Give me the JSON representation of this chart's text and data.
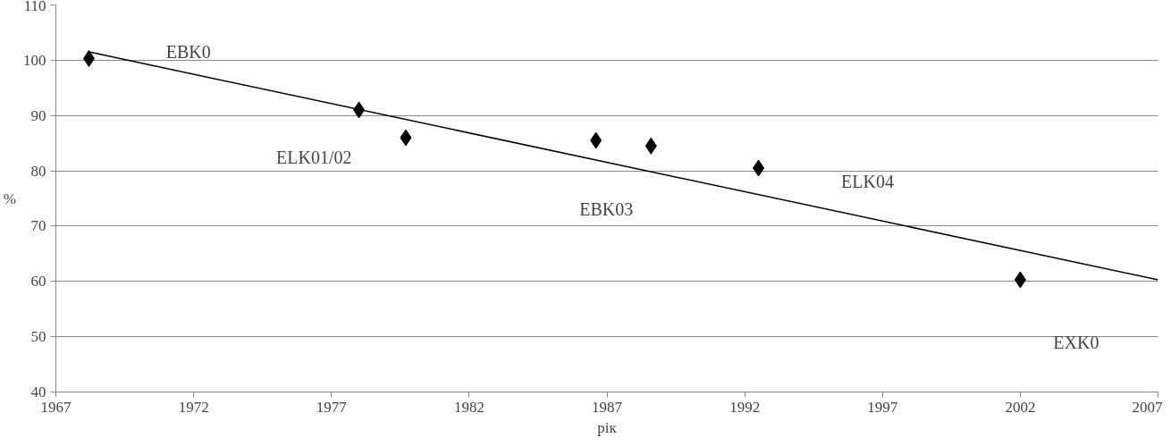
{
  "chart_data": {
    "type": "scatter",
    "xlabel": "рік",
    "ylabel": "%",
    "xlim": [
      1967,
      2007
    ],
    "xticks": [
      1967,
      1972,
      1977,
      1982,
      1987,
      1992,
      1997,
      2002,
      2007
    ],
    "ylim": [
      40,
      110
    ],
    "yticks": [
      40,
      50,
      60,
      70,
      80,
      90,
      100,
      110
    ],
    "grid": "y",
    "series": [
      {
        "marker": "diamond",
        "color": "#000000",
        "x": [
          1968.2,
          1978,
          1979.7,
          1986.6,
          1988.6,
          1992.5,
          2002
        ],
        "values": [
          100.3,
          91,
          86,
          85.5,
          84.5,
          80.5,
          60.3
        ]
      },
      {
        "type": "line",
        "color": "#000000",
        "x": [
          1968.2,
          2007
        ],
        "values": [
          101.5,
          60.3
        ]
      }
    ],
    "annotations": [
      "EBK0",
      "ELK01/02",
      "EBK03",
      "ELK04",
      "EXK0"
    ]
  }
}
